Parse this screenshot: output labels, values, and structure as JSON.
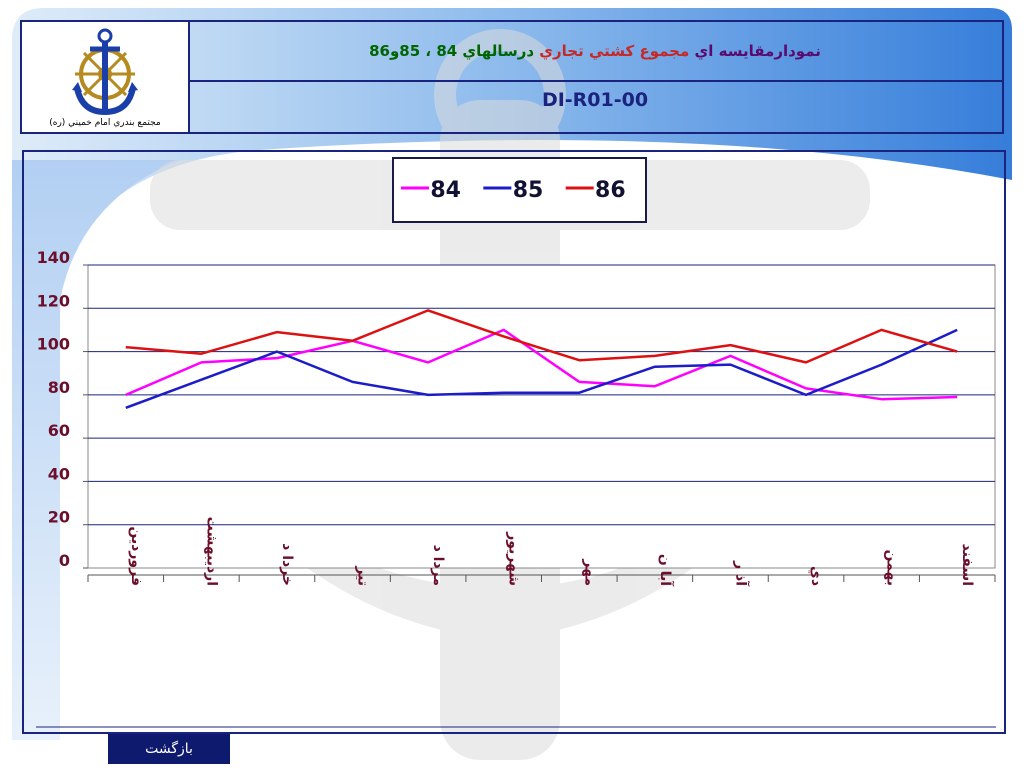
{
  "header": {
    "logo_caption": "مجتمع بندري امام خميني (ره)",
    "title_parts": [
      {
        "text": "نمودارمقايسه اي",
        "color": "#5a0a6e"
      },
      {
        "text": "مجموع كشتي تجاري",
        "color": "#c62828"
      },
      {
        "text": "درسالهاي 84 ، 85و86",
        "color": "#006400"
      }
    ],
    "code": "DI-R01-00"
  },
  "footer": {
    "back_label": "بازگشت"
  },
  "chart_data": {
    "type": "line",
    "categories": [
      "فروردين",
      "ارديبهشت",
      "خرداد",
      "تير",
      "مرداد",
      "شهريور",
      "مهر",
      "آبان",
      "آذر",
      "دي",
      "بهمن",
      "اسفند"
    ],
    "category_labels": [
      "فروردين",
      "ارديبهشت",
      "خردا د",
      "تير",
      "مردا د",
      "شهريور",
      "مهر",
      "آبا ن",
      "آذ ر",
      "دي",
      "بهمن",
      "اسفند"
    ],
    "ylim": [
      0,
      140
    ],
    "yticks": [
      "0",
      "20",
      "40",
      "60",
      "80",
      "100",
      "120",
      "140"
    ],
    "grid": true,
    "legend_position": "top-center",
    "series": [
      {
        "name": "84",
        "color": "#ff00ff",
        "values": [
          80,
          95,
          97,
          105,
          95,
          110,
          86,
          84,
          98,
          83,
          78,
          79
        ]
      },
      {
        "name": "85",
        "color": "#1c1cc8",
        "values": [
          74,
          87,
          100,
          86,
          80,
          81,
          81,
          93,
          94,
          80,
          94,
          110
        ]
      },
      {
        "name": "86",
        "color": "#dd1111",
        "values": [
          102,
          99,
          109,
          105,
          119,
          107,
          96,
          98,
          103,
          95,
          110,
          100
        ]
      }
    ]
  }
}
